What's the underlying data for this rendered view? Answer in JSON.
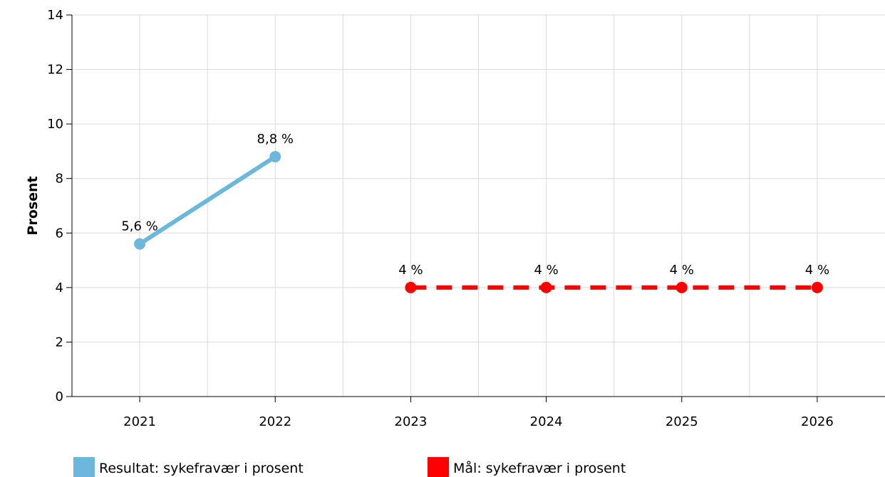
{
  "chart_data": {
    "type": "line",
    "x": [
      "2021",
      "2022",
      "2023",
      "2024",
      "2025",
      "2026"
    ],
    "ylabel": "Prosent",
    "ylim": [
      0,
      14
    ],
    "yticks": [
      "0",
      "2",
      "4",
      "6",
      "8",
      "10",
      "12",
      "14"
    ],
    "grid": true,
    "legend_position": "bottom",
    "series": [
      {
        "name": "Resultat: sykefravær i prosent",
        "color": "#6bb8dc",
        "style": "solid",
        "points": [
          {
            "x": "2021",
            "y": 5.6,
            "label": "5,6 %"
          },
          {
            "x": "2022",
            "y": 8.8,
            "label": "8,8 %"
          }
        ]
      },
      {
        "name": "Mål: sykefravær i prosent",
        "color": "#ff0000",
        "style": "dashed",
        "points": [
          {
            "x": "2023",
            "y": 4,
            "label": "4 %"
          },
          {
            "x": "2024",
            "y": 4,
            "label": "4 %"
          },
          {
            "x": "2025",
            "y": 4,
            "label": "4 %"
          },
          {
            "x": "2026",
            "y": 4,
            "label": "4 %"
          }
        ]
      }
    ]
  }
}
